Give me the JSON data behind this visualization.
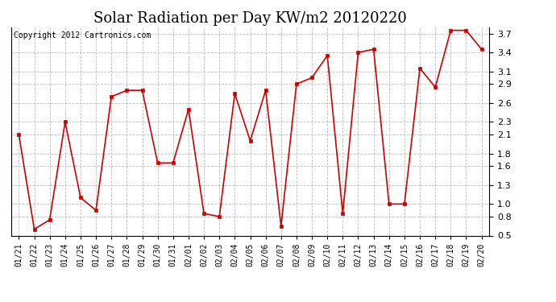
{
  "title": "Solar Radiation per Day KW/m2 20120220",
  "copyright": "Copyright 2012 Cartronics.com",
  "labels": [
    "01/21",
    "01/22",
    "01/23",
    "01/24",
    "01/25",
    "01/26",
    "01/27",
    "01/28",
    "01/29",
    "01/30",
    "01/31",
    "02/01",
    "02/02",
    "02/03",
    "02/04",
    "02/05",
    "02/06",
    "02/07",
    "02/08",
    "02/09",
    "02/10",
    "02/11",
    "02/12",
    "02/13",
    "02/14",
    "02/15",
    "02/16",
    "02/17",
    "02/18",
    "02/19",
    "02/20"
  ],
  "values": [
    2.1,
    0.6,
    0.75,
    2.3,
    1.1,
    0.9,
    2.7,
    2.8,
    2.8,
    1.65,
    1.65,
    2.5,
    0.85,
    0.8,
    2.75,
    2.0,
    2.8,
    0.65,
    2.9,
    3.0,
    3.35,
    0.85,
    3.4,
    3.45,
    1.0,
    1.0,
    3.15,
    2.85,
    3.75,
    3.75,
    3.45
  ],
  "line_color": "#cc0000",
  "marker": "s",
  "marker_size": 3,
  "ylim": [
    0.5,
    3.8
  ],
  "yticks": [
    0.5,
    0.8,
    1.0,
    1.3,
    1.6,
    1.8,
    2.1,
    2.3,
    2.6,
    2.9,
    3.1,
    3.4,
    3.7
  ],
  "bg_color": "#ffffff",
  "grid_color": "#bbbbbb",
  "title_fontsize": 13,
  "copyright_fontsize": 7,
  "tick_fontsize": 7,
  "ytick_fontsize": 8
}
